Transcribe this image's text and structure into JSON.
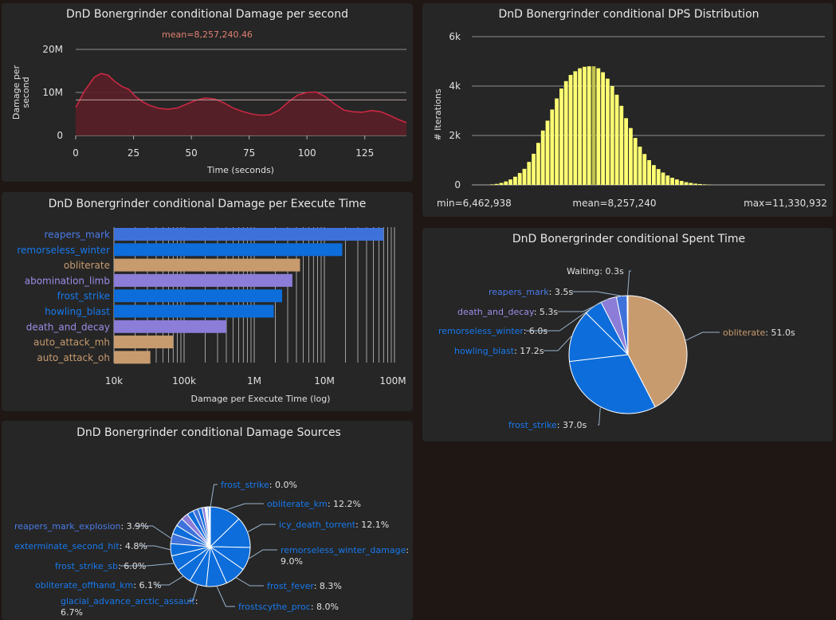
{
  "colors": {
    "background": "#1e1714",
    "panel": "#262626",
    "text": "#e0e0e0",
    "dps_line": "#c92844",
    "dps_fill": "#5a1f27",
    "mean_label": "#e08070",
    "hist_bar": "#ffff73",
    "hist_mean_bar": "#c2c24e",
    "frost": "#0d6ddb",
    "unholy": "#8b7dd8",
    "physical": "#c89b6f",
    "reapers": "#3e72da",
    "tan": "#c99e74"
  },
  "charts": [
    {
      "id": "dps-timeline",
      "type": "area",
      "title": "DnD Bonergrinder conditional Damage per second",
      "xlabel": "Time (seconds)",
      "ylabel": "Damage per second",
      "ylabel_lines": [
        "Damage per",
        "second"
      ],
      "mean_label": "mean=8,257,240.46",
      "mean": 8257240.46,
      "xlim": [
        0,
        143
      ],
      "ylim": [
        0,
        20000000
      ],
      "xticks": [
        "0",
        "25",
        "50",
        "75",
        "100",
        "125"
      ],
      "yticks": [
        "0",
        "10M",
        "20M"
      ],
      "x": [
        0,
        4,
        8,
        11,
        14,
        17,
        20,
        23,
        26,
        29,
        32,
        36,
        40,
        44,
        48,
        52,
        56,
        60,
        64,
        68,
        72,
        76,
        80,
        84,
        88,
        92,
        96,
        100,
        104,
        108,
        112,
        116,
        120,
        124,
        128,
        132,
        136,
        140,
        143
      ],
      "y": [
        6.5,
        10.5,
        13.5,
        14.4,
        14.0,
        12.5,
        11.4,
        10.7,
        9.0,
        7.8,
        7.0,
        6.3,
        6.1,
        6.4,
        7.3,
        8.2,
        8.7,
        8.5,
        7.6,
        6.4,
        5.6,
        5.0,
        4.7,
        4.8,
        5.9,
        7.8,
        9.4,
        10.0,
        10.1,
        9.0,
        7.3,
        5.9,
        5.5,
        5.4,
        5.8,
        5.5,
        4.6,
        3.6,
        3.0
      ]
    },
    {
      "id": "dps-distribution",
      "type": "bar",
      "title": "DnD Bonergrinder conditional DPS Distribution",
      "ylabel": "# Iterations",
      "yticks": [
        "0",
        "2k",
        "4k",
        "6k"
      ],
      "ylim": [
        0,
        6000
      ],
      "min_label": "min=6,462,938",
      "mean_label": "mean=8,257,240",
      "max_label": "max=11,330,932",
      "mean_index": 22,
      "values": [
        20,
        40,
        80,
        140,
        220,
        330,
        480,
        650,
        930,
        1260,
        1700,
        2200,
        2600,
        3050,
        3500,
        3900,
        4200,
        4450,
        4600,
        4720,
        4780,
        4800,
        4800,
        4720,
        4560,
        4300,
        4000,
        3650,
        3200,
        2700,
        2300,
        1900,
        1550,
        1250,
        1000,
        800,
        640,
        500,
        380,
        290,
        220,
        160,
        110,
        80,
        50,
        35,
        20,
        10
      ]
    },
    {
      "id": "damage-per-execute-time",
      "type": "bar",
      "title": "DnD Bonergrinder conditional Damage per Execute Time",
      "xlabel": "Damage per Execute Time (log)",
      "xticks": [
        "10k",
        "100k",
        "1M",
        "10M",
        "100M"
      ],
      "scale": "log",
      "xlim": [
        10000,
        100000000
      ],
      "categories": [
        "reapers_mark",
        "remorseless_winter",
        "obliterate",
        "abomination_limb",
        "frost_strike",
        "howling_blast",
        "death_and_decay",
        "auto_attack_mh",
        "auto_attack_oh"
      ],
      "values": [
        70000000,
        18000000,
        4500000,
        3500000,
        2500000,
        1900000,
        400000,
        70000,
        33000
      ],
      "bar_colors": [
        "#3e72da",
        "#0d6ddb",
        "#c89b6f",
        "#8b7dd8",
        "#0d6ddb",
        "#0d6ddb",
        "#8b7dd8",
        "#c89b6f",
        "#c89b6f"
      ],
      "label_colors": [
        "#4a7bea",
        "#1779ee",
        "#c89b6f",
        "#9c8ee8",
        "#1779ee",
        "#1779ee",
        "#9c8ee8",
        "#c89b6f",
        "#c89b6f"
      ]
    },
    {
      "id": "spent-time",
      "type": "pie",
      "title": "DnD Bonergrinder conditional Spent Time",
      "slices": [
        {
          "name": "obliterate",
          "value": 51.0,
          "text": ": 51.0s",
          "color": "#c89b6f",
          "label_color": "#c89b6f"
        },
        {
          "name": "frost_strike",
          "value": 37.0,
          "text": ": 37.0s",
          "color": "#0d6ddb",
          "label_color": "#1779ee"
        },
        {
          "name": "howling_blast",
          "value": 17.2,
          "text": ": 17.2s",
          "color": "#0d6ddb",
          "label_color": "#1779ee"
        },
        {
          "name": "remorseless_winter",
          "value": 6.0,
          "text": ": 6.0s",
          "color": "#0d6ddb",
          "label_color": "#1779ee"
        },
        {
          "name": "death_and_decay",
          "value": 5.3,
          "text": ": 5.3s",
          "color": "#8b7dd8",
          "label_color": "#9c8ee8"
        },
        {
          "name": "reapers_mark",
          "value": 3.5,
          "text": ": 3.5s",
          "color": "#3e72da",
          "label_color": "#4a7bea"
        },
        {
          "name": "Waiting",
          "value": 0.3,
          "text": ": 0.3s",
          "color": "#ffffff",
          "label_color": "#e0e0e0"
        }
      ]
    },
    {
      "id": "damage-sources",
      "type": "pie",
      "title": "DnD Bonergrinder conditional Damage Sources",
      "slices": [
        {
          "name": "frost_strike",
          "value": 0.0,
          "text": ": 0.0%",
          "color": "#0d6ddb",
          "label_color": "#1779ee",
          "labeled": true
        },
        {
          "name": "obliterate_km",
          "value": 12.2,
          "text": ": 12.2%",
          "color": "#0d6ddb",
          "label_color": "#1779ee",
          "labeled": true
        },
        {
          "name": "icy_death_torrent",
          "value": 12.1,
          "text": ": 12.1%",
          "color": "#0d6ddb",
          "label_color": "#1779ee",
          "labeled": true
        },
        {
          "name": "remorseless_winter_damage",
          "value": 9.0,
          "text": ": 9.0%",
          "color": "#0d6ddb",
          "label_color": "#1779ee",
          "labeled": true
        },
        {
          "name": "frost_fever",
          "value": 8.3,
          "text": ": 8.3%",
          "color": "#0d6ddb",
          "label_color": "#1779ee",
          "labeled": true
        },
        {
          "name": "frostscythe_proc",
          "value": 8.0,
          "text": ": 8.0%",
          "color": "#0d6ddb",
          "label_color": "#1779ee",
          "labeled": true
        },
        {
          "name": "glacial_advance_arctic_assault",
          "value": 6.7,
          "text": ": 6.7%",
          "color": "#0d6ddb",
          "label_color": "#1779ee",
          "labeled": true
        },
        {
          "name": "obliterate_offhand_km",
          "value": 6.1,
          "text": ": 6.1%",
          "color": "#0d6ddb",
          "label_color": "#1779ee",
          "labeled": true
        },
        {
          "name": "frost_strike_sb",
          "value": 6.0,
          "text": ": 6.0%",
          "color": "#0d6ddb",
          "label_color": "#1779ee",
          "labeled": true
        },
        {
          "name": "exterminate_second_hit",
          "value": 4.8,
          "text": ": 4.8%",
          "color": "#0d6ddb",
          "label_color": "#1779ee",
          "labeled": true
        },
        {
          "name": "reapers_mark_explosion",
          "value": 3.9,
          "text": ": 3.9%",
          "color": "#3e72da",
          "label_color": "#4a7bea",
          "labeled": true
        },
        {
          "value": 3.5,
          "color": "#0d6ddb"
        },
        {
          "value": 3.2,
          "color": "#3e72da"
        },
        {
          "value": 2.8,
          "color": "#8b7dd8"
        },
        {
          "value": 2.5,
          "color": "#0d6ddb"
        },
        {
          "value": 2.0,
          "color": "#3e72da"
        },
        {
          "value": 1.6,
          "color": "#0d6ddb"
        },
        {
          "value": 1.2,
          "color": "#8b7dd8"
        },
        {
          "value": 0.9,
          "color": "#ffffff"
        },
        {
          "value": 0.6,
          "color": "#0d6ddb"
        },
        {
          "value": 0.6,
          "color": "#ffffff"
        }
      ]
    }
  ]
}
